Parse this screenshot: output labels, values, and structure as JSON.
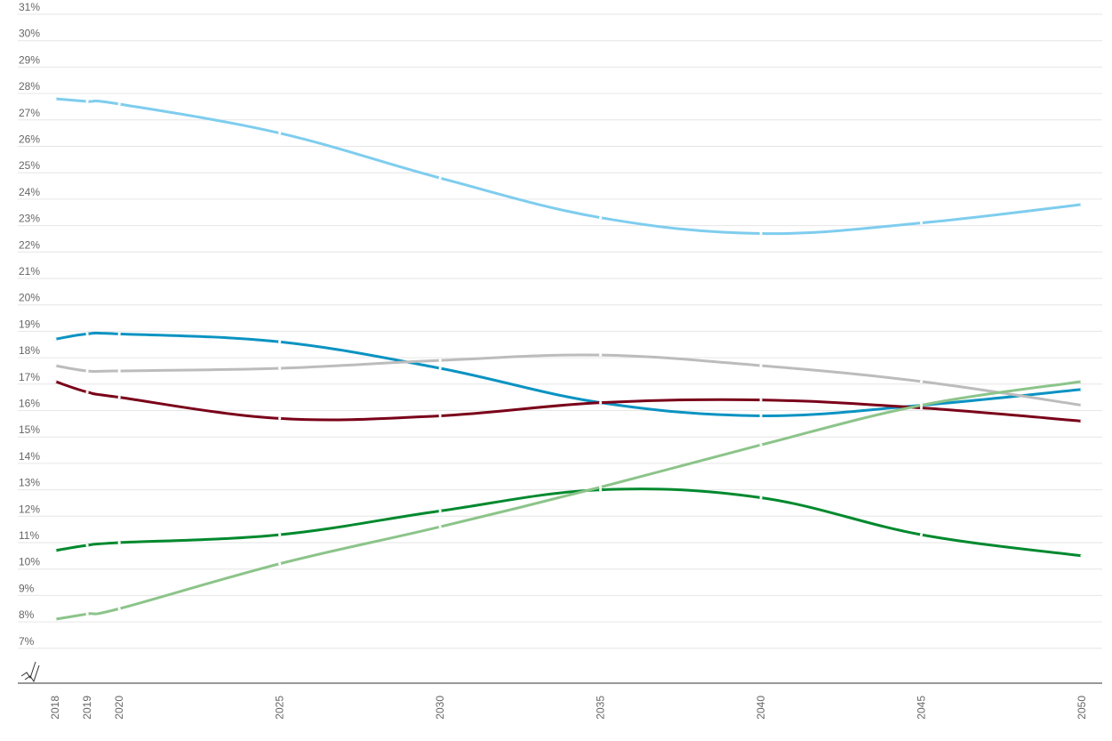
{
  "chart_data": {
    "type": "line",
    "x": [
      2018,
      2019,
      2020,
      2025,
      2030,
      2035,
      2040,
      2045,
      2050
    ],
    "x_tick_labels": [
      "2018",
      "2019",
      "2020",
      "2025",
      "2030",
      "2035",
      "2040",
      "2045",
      "2050"
    ],
    "ylim": [
      6,
      31
    ],
    "y_tick_values": [
      7,
      8,
      9,
      10,
      11,
      12,
      13,
      14,
      15,
      16,
      17,
      18,
      19,
      20,
      21,
      22,
      23,
      24,
      25,
      26,
      27,
      28,
      29,
      30,
      31
    ],
    "y_tick_labels": [
      "7%",
      "8%",
      "9%",
      "10%",
      "11%",
      "12%",
      "13%",
      "14%",
      "15%",
      "16%",
      "17%",
      "18%",
      "19%",
      "20%",
      "21%",
      "22%",
      "23%",
      "24%",
      "25%",
      "26%",
      "27%",
      "28%",
      "29%",
      "30%",
      "31%"
    ],
    "y_axis_break": true,
    "grid": true,
    "legend": "none",
    "title": "",
    "xlabel": "",
    "ylabel": "",
    "series": [
      {
        "color": "#7ecdee",
        "values": [
          27.8,
          27.7,
          27.6,
          26.5,
          24.8,
          23.3,
          22.7,
          23.1,
          23.8
        ]
      },
      {
        "color": "#0b93c2",
        "values": [
          18.7,
          18.9,
          18.9,
          18.6,
          17.6,
          16.3,
          15.8,
          16.2,
          16.8
        ]
      },
      {
        "color": "#bcbcbc",
        "values": [
          17.7,
          17.5,
          17.5,
          17.6,
          17.9,
          18.1,
          17.7,
          17.1,
          16.2
        ]
      },
      {
        "color": "#7a0019",
        "values": [
          17.1,
          16.7,
          16.5,
          15.7,
          15.8,
          16.3,
          16.4,
          16.1,
          15.6
        ]
      },
      {
        "color": "#00892e",
        "values": [
          10.7,
          10.9,
          11.0,
          11.3,
          12.2,
          13.0,
          12.7,
          11.3,
          10.5
        ]
      },
      {
        "color": "#8cc48a",
        "values": [
          8.1,
          8.3,
          8.5,
          10.2,
          11.6,
          13.1,
          14.7,
          16.2,
          17.1
        ]
      }
    ]
  }
}
